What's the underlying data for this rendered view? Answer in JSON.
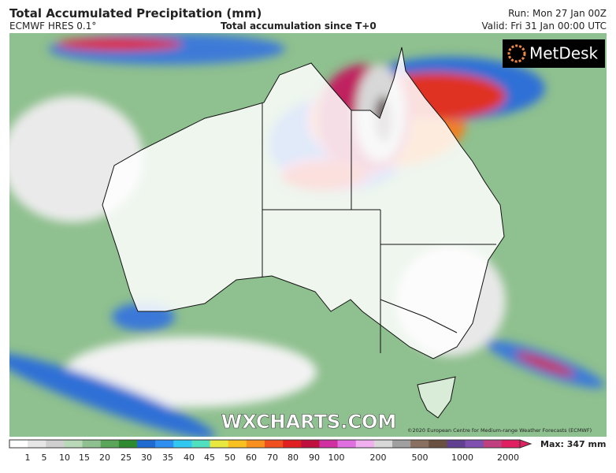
{
  "header": {
    "title": "Total Accumulated Precipitation (mm)",
    "model": "ECMWF HRES 0.1°",
    "subtitle": "Total accumulation since T+0",
    "run": "Run: Mon 27 Jan 00Z",
    "valid": "Valid: Fri 31 Jan 00:00 UTC"
  },
  "map": {
    "logo": "MetDesk",
    "watermark": "WXCHARTS.COM",
    "copyright": "©2020 European Centre for Medium-range Weather Forecasts (ECMWF)"
  },
  "colorbar": {
    "labels": [
      "1",
      "5",
      "10",
      "15",
      "20",
      "25",
      "30",
      "35",
      "40",
      "45",
      "50",
      "60",
      "70",
      "80",
      "90",
      "100",
      "200",
      "500",
      "1000",
      "2000"
    ],
    "max": "Max: 347 mm"
  }
}
